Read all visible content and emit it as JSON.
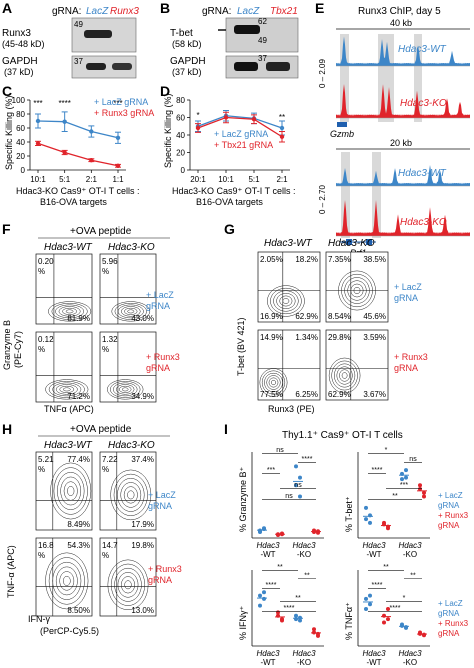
{
  "panel_letters": [
    "A",
    "B",
    "C",
    "D",
    "E",
    "F",
    "G",
    "H",
    "I"
  ],
  "colors": {
    "lacz": "#3d86c8",
    "runx3": "#e0242b",
    "tbx21": "#e0242b",
    "black": "#111111",
    "blot_bg": "#cfcfcf"
  },
  "panel_a": {
    "grna_label": "gRNA:",
    "lane1": "LacZ",
    "lane2": "Runx3",
    "row1_label": "Runx3",
    "row1_sub": "(45-48 kD)",
    "row2_label": "GAPDH",
    "row2_sub": "(37 kD)",
    "marker1": "49",
    "marker2": "37"
  },
  "panel_b": {
    "grna_label": "gRNA:",
    "lane1": "LacZ",
    "lane2": "Tbx21",
    "row1_label": "T-bet",
    "row1_sub": "(58 kD)",
    "row2_label": "GAPDH",
    "row2_sub": "(37 kD)",
    "marker1": "62",
    "marker2": "49",
    "marker3": "37"
  },
  "panel_c": {
    "ylabel": "Specific Killing (%)",
    "xlabel_line1": "Hdac3-KO Cas9⁺ OT-I T cells :",
    "xlabel_line2": "B16-OVA targets",
    "legend": [
      "+ LacZ gRNA",
      "+ Runx3 gRNA"
    ],
    "stars": [
      "***",
      "****",
      "***"
    ]
  },
  "panel_d": {
    "ylabel": "Specific Killing (%)",
    "xlabel_line1": "Hdac3-KO Cas9⁺ OT-I T cells :",
    "xlabel_line2": "B16-OVA targets",
    "legend": [
      "+ LacZ gRNA",
      "+ Tbx21 gRNA"
    ],
    "stars": [
      "*",
      "**"
    ]
  },
  "chart_data": [
    {
      "panel": "C",
      "type": "line",
      "categories": [
        "10:1",
        "5:1",
        "2:1",
        "1:1"
      ],
      "ylim": [
        0,
        100
      ],
      "yticks": [
        0,
        20,
        40,
        60,
        80,
        100
      ],
      "series": [
        {
          "name": "+ LacZ gRNA",
          "values": [
            70,
            69,
            55,
            46
          ],
          "err": [
            10,
            14,
            8,
            8
          ]
        },
        {
          "name": "+ Runx3 gRNA",
          "values": [
            38,
            25,
            14,
            6
          ],
          "err": [
            3,
            3,
            2,
            2
          ]
        }
      ]
    },
    {
      "panel": "D",
      "type": "line",
      "categories": [
        "20:1",
        "10:1",
        "5:1",
        "2:1"
      ],
      "ylim": [
        0,
        80
      ],
      "yticks": [
        0,
        20,
        40,
        60,
        80
      ],
      "series": [
        {
          "name": "+ LacZ gRNA",
          "values": [
            50,
            62,
            59,
            48
          ],
          "err": [
            6,
            6,
            6,
            8
          ]
        },
        {
          "name": "+ Tbx21 gRNA",
          "values": [
            48,
            60,
            58,
            38
          ],
          "err": [
            5,
            6,
            5,
            6
          ]
        }
      ]
    },
    {
      "panel": "I",
      "type": "scatter",
      "title": "Thy1.1⁺ Cas9⁺ OT-I T cells",
      "subplots": [
        {
          "ylabel": "% Granzyme B⁺",
          "ylim": [
            0,
            1
          ],
          "yticks": [],
          "groups": [
            {
              "name": "WT LacZ",
              "values": [
                0.1,
                0.12,
                0.08,
                0.13,
                0.09
              ],
              "color": "lacz"
            },
            {
              "name": "WT Runx3",
              "values": [
                0.05,
                0.06,
                0.04,
                0.05
              ],
              "color": "runx3"
            },
            {
              "name": "KO LacZ",
              "values": [
                0.95,
                0.8,
                0.7,
                0.55
              ],
              "color": "lacz"
            },
            {
              "name": "KO Runx3",
              "values": [
                0.08,
                0.09,
                0.1,
                0.07
              ],
              "color": "runx3"
            }
          ],
          "sig": [
            "***",
            "****",
            "ns",
            "ns",
            "ns"
          ]
        },
        {
          "ylabel": "% T-bet⁺",
          "ylim": [
            0,
            1
          ],
          "yticks": [],
          "groups": [
            {
              "name": "WT LacZ",
              "values": [
                0.4,
                0.3,
                0.25,
                0.2
              ],
              "color": "lacz"
            },
            {
              "name": "WT Runx3",
              "values": [
                0.18,
                0.15,
                0.2,
                0.13
              ],
              "color": "runx3"
            },
            {
              "name": "KO LacZ",
              "values": [
                0.85,
                0.8,
                0.78,
                0.9
              ],
              "color": "lacz"
            },
            {
              "name": "KO Runx3",
              "values": [
                0.65,
                0.55,
                0.7,
                0.6
              ],
              "color": "runx3"
            }
          ],
          "sig": [
            "****",
            "ns",
            "*",
            "***",
            "**"
          ]
        },
        {
          "ylabel": "% IFNγ⁺",
          "ylim": [
            0,
            1
          ],
          "yticks": [],
          "groups": [
            {
              "name": "WT LacZ",
              "values": [
                0.75,
                0.7,
                0.6,
                0.8
              ],
              "color": "lacz"
            },
            {
              "name": "WT Runx3",
              "values": [
                0.45,
                0.4,
                0.5,
                0.38
              ],
              "color": "runx3"
            },
            {
              "name": "KO LacZ",
              "values": [
                0.4,
                0.38,
                0.45,
                0.42
              ],
              "color": "lacz"
            },
            {
              "name": "KO Runx3",
              "values": [
                0.2,
                0.18,
                0.25,
                0.15
              ],
              "color": "runx3"
            }
          ],
          "sig": [
            "****",
            "**",
            "**",
            "**",
            "****"
          ]
        },
        {
          "ylabel": "% TNFα⁺",
          "ylim": [
            0,
            1
          ],
          "yticks": [],
          "groups": [
            {
              "name": "WT LacZ",
              "values": [
                0.7,
                0.62,
                0.55,
                0.75
              ],
              "color": "lacz"
            },
            {
              "name": "WT Runx3",
              "values": [
                0.45,
                0.4,
                0.35,
                0.55
              ],
              "color": "runx3"
            },
            {
              "name": "KO LacZ",
              "values": [
                0.3,
                0.28,
                0.32,
                0.27
              ],
              "color": "lacz"
            },
            {
              "name": "KO Runx3",
              "values": [
                0.18,
                0.16,
                0.2,
                0.17
              ],
              "color": "runx3"
            }
          ],
          "sig": [
            "****",
            "**",
            "**",
            "*",
            "****"
          ]
        }
      ],
      "group_labels": [
        "Hdac3",
        "-WT",
        "Hdac3",
        "-KO"
      ],
      "legend": [
        "+ LacZ",
        "gRNA",
        "+ Runx3",
        "gRNA"
      ]
    }
  ],
  "panel_e": {
    "title": "Runx3 ChIP, day 5",
    "scale1": "40 kb",
    "scale2": "20 kb",
    "ymax1": "0 – 2.09",
    "ymax2": "0 – 2.70",
    "wt": "Hdac3-WT",
    "ko": "Hdac3-KO",
    "gene1": "Gzmb",
    "gene2": "Prf1"
  },
  "panel_f": {
    "header": "+OVA peptide",
    "col1": "Hdac3-WT",
    "col2": "Hdac3-KO",
    "ylabel_line1": "Granzyme B",
    "ylabel_line2": "(PE-Cy7)",
    "xlabel": "TNFα (APC)",
    "row_labels": [
      "+ LacZ",
      "gRNA",
      "+ Runx3",
      "gRNA"
    ],
    "quadrants": [
      {
        "tl": "0.20\n%",
        "br": "81.9%"
      },
      {
        "tl": "5.96\n%",
        "br": "43.0%"
      },
      {
        "tl": "0.12\n%",
        "br": "71.2%"
      },
      {
        "tl": "1.32\n%",
        "br": "34.9%"
      }
    ]
  },
  "panel_g": {
    "col1": "Hdac3-WT",
    "col2": "Hdac3-KO",
    "ylabel": "T-bet (BV 421)",
    "xlabel": "Runx3 (PE)",
    "row_labels": [
      "+ LacZ",
      "gRNA",
      "+ Runx3",
      "gRNA"
    ],
    "quadrants": [
      {
        "tl": "2.05%",
        "tr": "18.2%",
        "bl": "16.9%",
        "br": "62.9%"
      },
      {
        "tl": "7.35%",
        "tr": "38.5%",
        "bl": "8.54%",
        "br": "45.6%"
      },
      {
        "tl": "14.9%",
        "tr": "1.34%",
        "bl": "77.5%",
        "br": "6.25%"
      },
      {
        "tl": "29.8%",
        "tr": "3.59%",
        "bl": "62.9%",
        "br": "3.67%"
      }
    ]
  },
  "panel_h": {
    "header": "+OVA peptide",
    "col1": "Hdac3-WT",
    "col2": "Hdac3-KO",
    "ylabel": "TNF-α (APC)",
    "xlabel": "IFN-γ",
    "xlabel2": "(PerCP-Cy5.5)",
    "row_labels": [
      "+ LacZ",
      "gRNA",
      "+ Runx3",
      "gRNA"
    ],
    "quadrants": [
      {
        "tl": "5.21\n%",
        "tr": "77.4%",
        "br": "8.49%"
      },
      {
        "tl": "7.22\n%",
        "tr": "37.4%",
        "br": "17.9%"
      },
      {
        "tl": "16.8\n%",
        "tr": "54.3%",
        "br": "8.50%"
      },
      {
        "tl": "14.7\n%",
        "tr": "19.8%",
        "br": "13.0%"
      }
    ]
  }
}
